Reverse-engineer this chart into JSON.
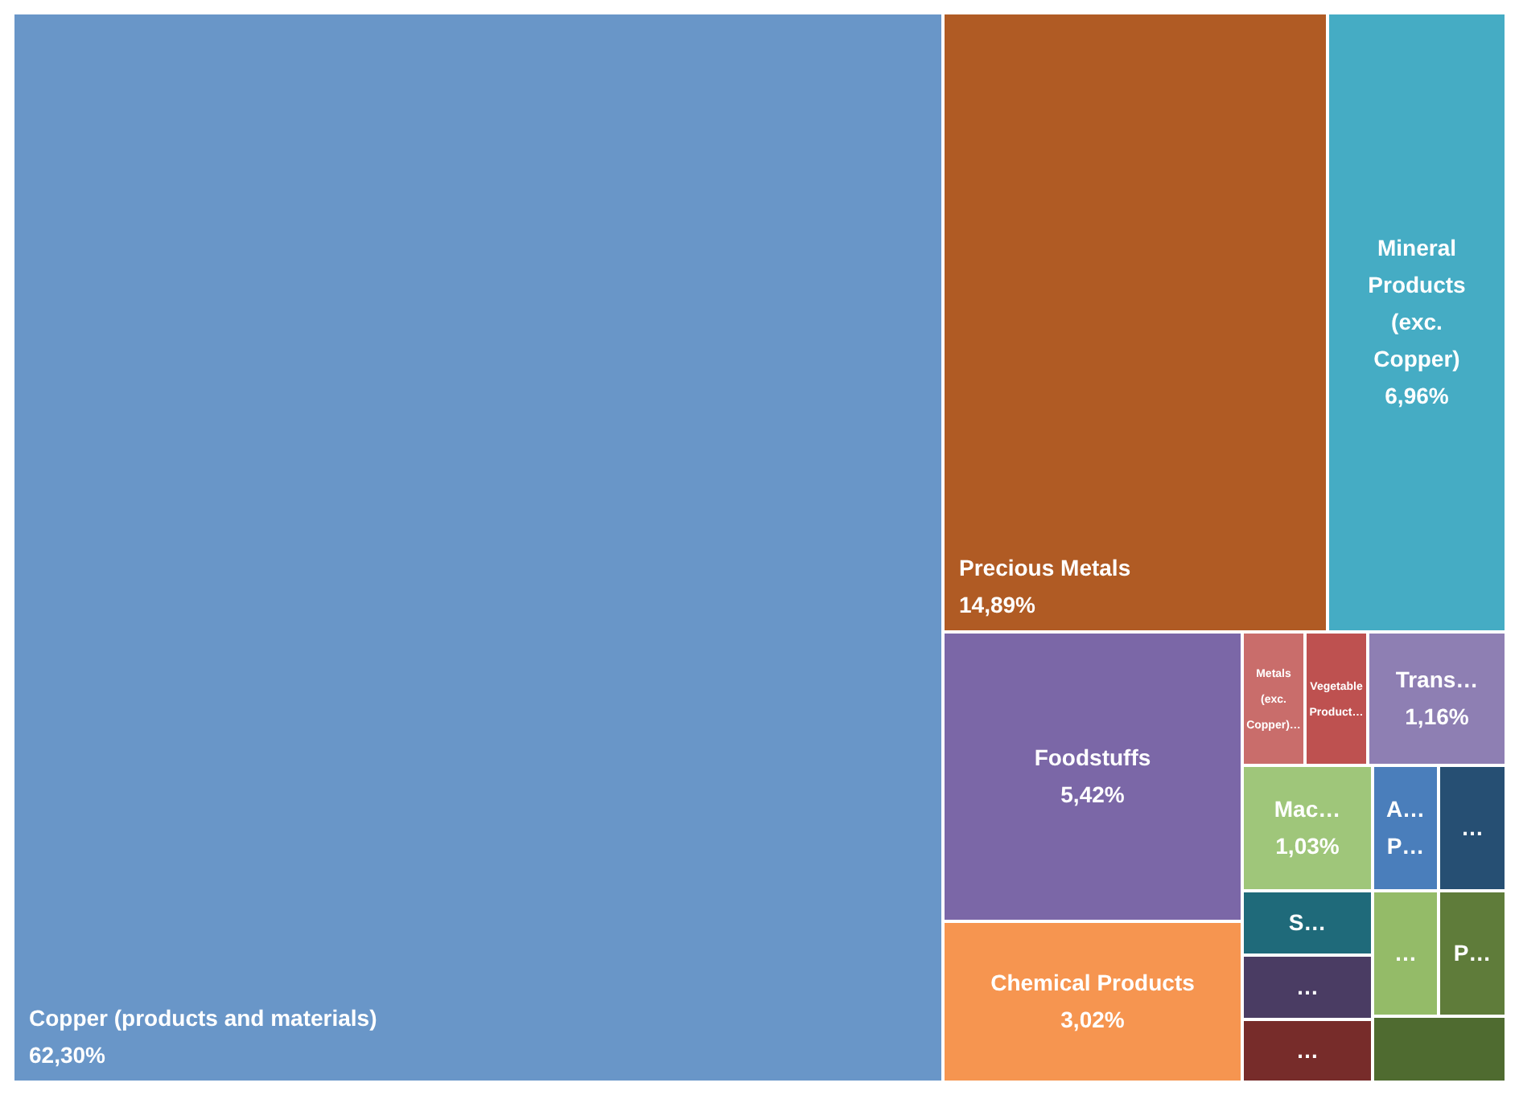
{
  "chart_data": {
    "type": "other",
    "categories": [
      "Copper (products and materials)",
      "Precious Metals",
      "Mineral Products (exc. Copper)",
      "Foodstuffs",
      "Chemical Products",
      "Metals (exc. Copper)…",
      "Vegetable Product…",
      "Trans…",
      "Mac…",
      "A… P…",
      "…",
      "S…",
      "…",
      "…",
      "…",
      "P…",
      null
    ],
    "values": [
      62.3,
      14.89,
      6.96,
      5.42,
      3.02,
      null,
      null,
      1.16,
      1.03,
      null,
      null,
      null,
      null,
      null,
      null,
      null,
      null
    ],
    "value_labels": [
      "62,30%",
      "14,89%",
      "6,96%",
      "5,42%",
      "3,02%",
      null,
      null,
      "1,16%",
      "1,03%",
      null,
      null,
      null,
      null,
      null,
      null,
      null,
      null
    ],
    "colors": [
      "#6996c8",
      "#b05b24",
      "#45acc4",
      "#7b67a7",
      "#f69550",
      "#c96d6b",
      "#be5150",
      "#8e7fb3",
      "#9fc67a",
      "#4a7ebb",
      "#264f73",
      "#1f6a7a",
      "#4a3c63",
      "#772c2a",
      "#94bb68",
      "#5f7c3a",
      "#4f6b30"
    ]
  }
}
